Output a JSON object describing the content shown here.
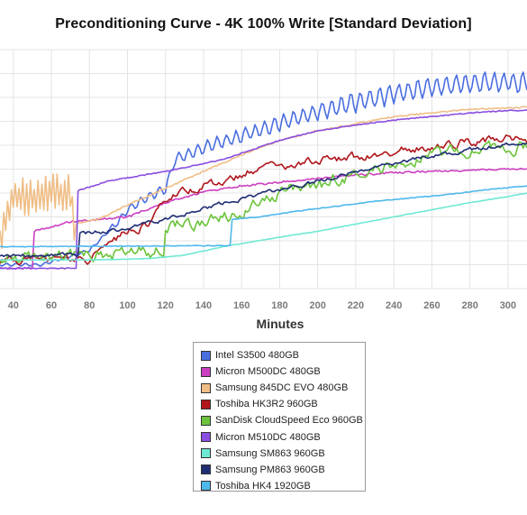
{
  "chart_data": {
    "type": "line",
    "title": "Preconditioning Curve - 4K 100% Write [Standard Deviation]",
    "xlabel": "Minutes",
    "ylabel": "",
    "xlim": [
      33,
      310
    ],
    "ylim": [
      0,
      10
    ],
    "x_ticks": [
      "40",
      "60",
      "80",
      "100",
      "120",
      "140",
      "160",
      "180",
      "200",
      "220",
      "240",
      "260",
      "280",
      "300"
    ],
    "grid": true,
    "legend_position": "bottom-center",
    "series": [
      {
        "name": "Intel S3500 480GB",
        "color": "#4a6ee0",
        "shape": "oscillating",
        "amp": 0.28,
        "points": [
          [
            33,
            1.0
          ],
          [
            55,
            1.0
          ],
          [
            80,
            1.6
          ],
          [
            95,
            2.8
          ],
          [
            100,
            3.3
          ],
          [
            110,
            3.8
          ],
          [
            120,
            4.2
          ],
          [
            125,
            5.4
          ],
          [
            140,
            5.9
          ],
          [
            160,
            6.4
          ],
          [
            180,
            6.9
          ],
          [
            200,
            7.4
          ],
          [
            220,
            7.8
          ],
          [
            240,
            8.15
          ],
          [
            260,
            8.4
          ],
          [
            280,
            8.6
          ],
          [
            300,
            8.65
          ],
          [
            310,
            8.6
          ]
        ]
      },
      {
        "name": "Micron M500DC 480GB",
        "color": "#cc3fc1",
        "shape": "smooth",
        "amp": 0.08,
        "points": [
          [
            33,
            0.85
          ],
          [
            50,
            0.85
          ],
          [
            51,
            2.4
          ],
          [
            70,
            2.8
          ],
          [
            100,
            3.0
          ],
          [
            120,
            3.6
          ],
          [
            140,
            4.05
          ],
          [
            160,
            4.3
          ],
          [
            180,
            4.45
          ],
          [
            200,
            4.6
          ],
          [
            220,
            4.75
          ],
          [
            240,
            4.85
          ],
          [
            260,
            4.9
          ],
          [
            280,
            4.95
          ],
          [
            300,
            5.0
          ],
          [
            310,
            5.0
          ]
        ]
      },
      {
        "name": "Samsung 845DC EVO 480GB",
        "color": "#efbd85",
        "shape": "jagged",
        "amp": 0.8,
        "jagEnd": 72,
        "points": [
          [
            33,
            2.1
          ],
          [
            40,
            3.9
          ],
          [
            50,
            3.8
          ],
          [
            60,
            4.0
          ],
          [
            70,
            4.1
          ],
          [
            72,
            2.7
          ],
          [
            85,
            2.9
          ],
          [
            100,
            3.5
          ],
          [
            120,
            4.2
          ],
          [
            140,
            4.9
          ],
          [
            160,
            5.6
          ],
          [
            180,
            6.2
          ],
          [
            200,
            6.6
          ],
          [
            220,
            6.9
          ],
          [
            240,
            7.2
          ],
          [
            260,
            7.35
          ],
          [
            280,
            7.5
          ],
          [
            300,
            7.55
          ],
          [
            310,
            7.6
          ]
        ]
      },
      {
        "name": "Toshiba HK3R2 960GB",
        "color": "#b0161c",
        "shape": "noisy",
        "amp": 0.15,
        "points": [
          [
            33,
            1.15
          ],
          [
            80,
            1.2
          ],
          [
            95,
            2.2
          ],
          [
            110,
            2.7
          ],
          [
            120,
            3.6
          ],
          [
            130,
            4.0
          ],
          [
            140,
            4.3
          ],
          [
            160,
            4.8
          ],
          [
            180,
            5.1
          ],
          [
            200,
            5.35
          ],
          [
            220,
            5.55
          ],
          [
            240,
            5.75
          ],
          [
            260,
            5.95
          ],
          [
            280,
            6.15
          ],
          [
            300,
            6.3
          ],
          [
            310,
            6.1
          ]
        ]
      },
      {
        "name": "SanDisk CloudSpeed Eco 960GB",
        "color": "#6cc33b",
        "shape": "noisy",
        "amp": 0.22,
        "points": [
          [
            33,
            1.3
          ],
          [
            90,
            1.45
          ],
          [
            119,
            1.6
          ],
          [
            120,
            2.6
          ],
          [
            150,
            3.0
          ],
          [
            170,
            3.6
          ],
          [
            180,
            4.0
          ],
          [
            190,
            4.3
          ],
          [
            200,
            4.2
          ],
          [
            210,
            4.6
          ],
          [
            225,
            4.9
          ],
          [
            240,
            5.2
          ],
          [
            255,
            5.45
          ],
          [
            270,
            5.65
          ],
          [
            285,
            5.85
          ],
          [
            300,
            5.9
          ],
          [
            310,
            6.0
          ]
        ]
      },
      {
        "name": "Micron M510DC 480GB",
        "color": "#8a4ee0",
        "shape": "smooth",
        "amp": 0.04,
        "points": [
          [
            33,
            0.85
          ],
          [
            73,
            0.85
          ],
          [
            74,
            4.1
          ],
          [
            90,
            4.5
          ],
          [
            120,
            4.9
          ],
          [
            150,
            5.4
          ],
          [
            180,
            6.2
          ],
          [
            200,
            6.6
          ],
          [
            220,
            6.85
          ],
          [
            240,
            7.05
          ],
          [
            260,
            7.2
          ],
          [
            280,
            7.35
          ],
          [
            300,
            7.45
          ],
          [
            310,
            7.45
          ]
        ]
      },
      {
        "name": "Samsung SM863 960GB",
        "color": "#6ee8d4",
        "shape": "smooth",
        "amp": 0.02,
        "points": [
          [
            33,
            1.2
          ],
          [
            80,
            1.2
          ],
          [
            110,
            1.25
          ],
          [
            130,
            1.4
          ],
          [
            150,
            1.75
          ],
          [
            180,
            2.15
          ],
          [
            200,
            2.4
          ],
          [
            220,
            2.7
          ],
          [
            240,
            3.0
          ],
          [
            260,
            3.3
          ],
          [
            280,
            3.6
          ],
          [
            300,
            3.85
          ],
          [
            310,
            4.0
          ]
        ]
      },
      {
        "name": "Samsung PM863 960GB",
        "color": "#1f2d73",
        "shape": "noisy",
        "amp": 0.07,
        "points": [
          [
            33,
            1.35
          ],
          [
            74,
            1.4
          ],
          [
            75,
            2.3
          ],
          [
            100,
            2.5
          ],
          [
            120,
            2.9
          ],
          [
            140,
            3.35
          ],
          [
            160,
            3.75
          ],
          [
            180,
            4.15
          ],
          [
            200,
            4.5
          ],
          [
            220,
            4.9
          ],
          [
            240,
            5.25
          ],
          [
            260,
            5.55
          ],
          [
            280,
            5.8
          ],
          [
            300,
            6.05
          ],
          [
            310,
            6.1
          ]
        ]
      },
      {
        "name": "Toshiba HK4 1920GB",
        "color": "#4fb8ec",
        "shape": "smooth",
        "amp": 0.03,
        "points": [
          [
            33,
            1.75
          ],
          [
            154,
            1.8
          ],
          [
            155,
            2.9
          ],
          [
            170,
            3.0
          ],
          [
            190,
            3.25
          ],
          [
            210,
            3.45
          ],
          [
            230,
            3.65
          ],
          [
            250,
            3.8
          ],
          [
            270,
            3.95
          ],
          [
            290,
            4.15
          ],
          [
            310,
            4.3
          ]
        ]
      }
    ]
  }
}
